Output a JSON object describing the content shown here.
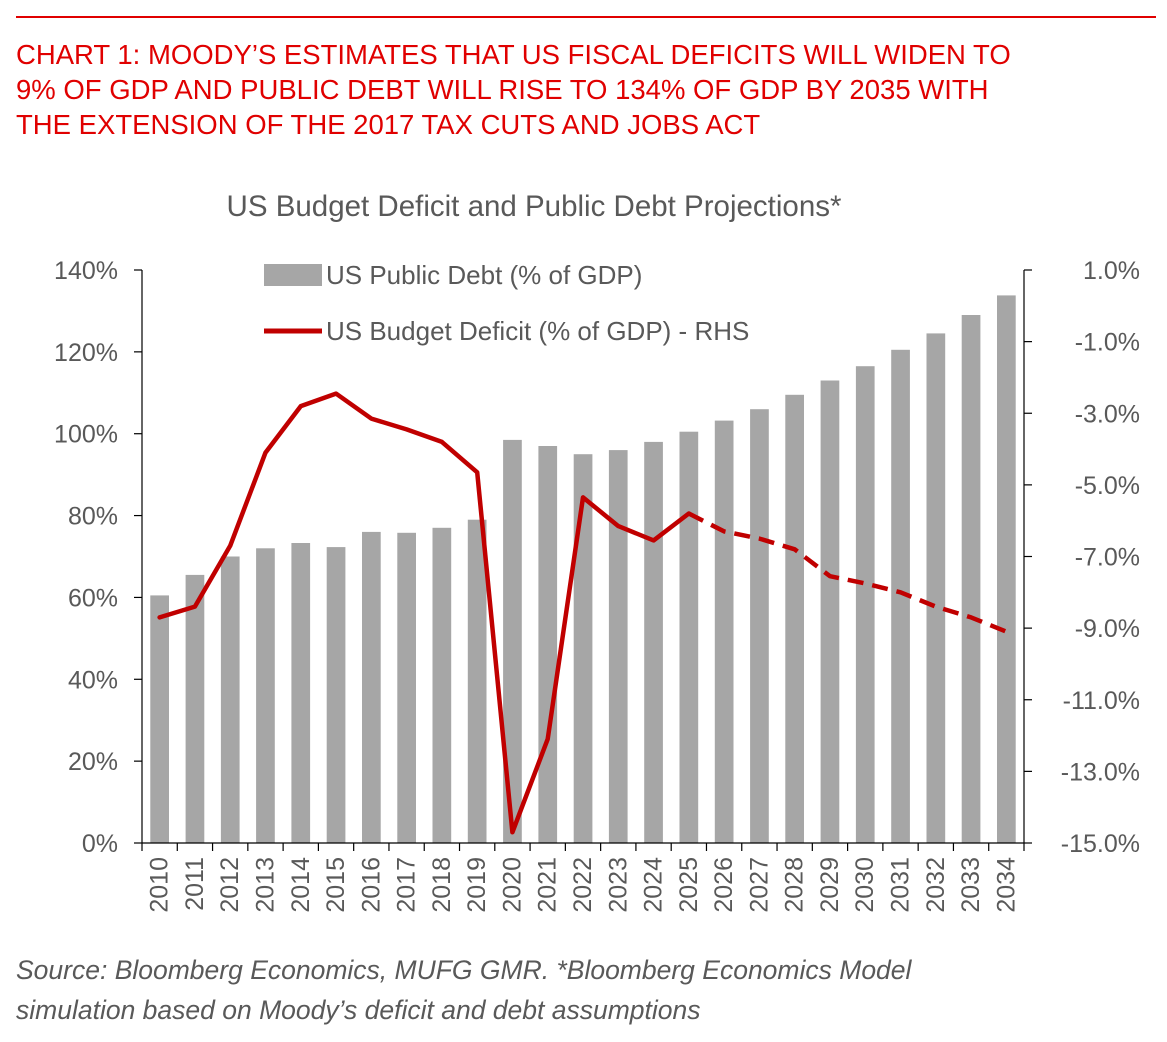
{
  "header": {
    "title_lines": [
      "CHART 1: MOODY’S ESTIMATES THAT US FISCAL DEFICITS WILL WIDEN TO",
      "9% OF GDP AND PUBLIC DEBT WILL RISE TO 134% OF GDP BY 2035 WITH",
      "THE EXTENSION OF THE 2017 TAX CUTS AND JOBS ACT"
    ]
  },
  "source": {
    "lines": [
      "Source: Bloomberg Economics, MUFG GMR. *Bloomberg Economics Model",
      "simulation based on Moody’s deficit and debt assumptions"
    ]
  },
  "colors": {
    "accent": "#e00000",
    "bar": "#a6a6a6",
    "line": "#c00000",
    "text": "#595959"
  },
  "chart_data": {
    "type": "bar",
    "title": "US Budget Deficit and Public Debt Projections*",
    "categories": [
      "2010",
      "2011",
      "2012",
      "2013",
      "2014",
      "2015",
      "2016",
      "2017",
      "2018",
      "2019",
      "2020",
      "2021",
      "2022",
      "2023",
      "2024",
      "2025",
      "2026",
      "2027",
      "2028",
      "2029",
      "2030",
      "2031",
      "2032",
      "2033",
      "2034"
    ],
    "left_axis": {
      "ylim": [
        0,
        140
      ],
      "ticks": [
        0,
        20,
        40,
        60,
        80,
        100,
        120,
        140
      ],
      "tick_labels": [
        "0%",
        "20%",
        "40%",
        "60%",
        "80%",
        "100%",
        "120%",
        "140%"
      ]
    },
    "right_axis": {
      "ylim": [
        -15,
        1
      ],
      "ticks": [
        -15,
        -13,
        -11,
        -9,
        -7,
        -5,
        -3,
        -1,
        1
      ],
      "tick_labels": [
        "-15.0%",
        "-13.0%",
        "-11.0%",
        "-9.0%",
        "-7.0%",
        "-5.0%",
        "-3.0%",
        "-1.0%",
        "1.0%"
      ]
    },
    "series": [
      {
        "name": "US Public Debt (% of GDP)",
        "type": "bar",
        "axis": "left",
        "values": [
          60.5,
          65.5,
          70,
          72,
          73.3,
          72.3,
          76,
          75.8,
          77,
          79,
          98.5,
          97,
          95,
          96,
          98,
          100.5,
          103.2,
          106,
          109.5,
          113,
          116.5,
          120.5,
          124.5,
          129,
          133.8
        ]
      },
      {
        "name": "US Budget Deficit (% of GDP) - RHS",
        "type": "line",
        "axis": "right",
        "values": [
          -8.7,
          -8.4,
          -6.7,
          -4.1,
          -2.8,
          -2.45,
          -3.15,
          -3.45,
          -3.8,
          -4.65,
          -14.7,
          -12.1,
          -5.35,
          -6.15,
          -6.55,
          -5.8,
          -6.3,
          -6.5,
          -6.8,
          -7.55,
          -7.75,
          -8.0,
          -8.4,
          -8.7,
          -9.1
        ],
        "projection_start": "2025"
      }
    ],
    "legend": "top-left inside plot",
    "grid": false
  }
}
